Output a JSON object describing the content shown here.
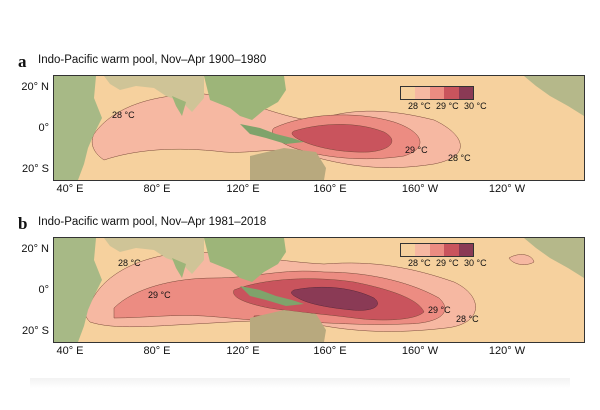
{
  "panels": [
    {
      "letter": "a",
      "title": "Indo-Pacific warm pool, Nov–Apr 1900–1980",
      "contour_labels": [
        "28 °C",
        "29 °C",
        "28 °C"
      ]
    },
    {
      "letter": "b",
      "title": "Indo-Pacific warm pool, Nov–Apr 1981–2018",
      "contour_labels": [
        "28 °C",
        "29 °C",
        "29 °C",
        "28 °C"
      ]
    }
  ],
  "lat_ticks": [
    "20° N",
    "0°",
    "20° S"
  ],
  "lon_ticks": [
    "40° E",
    "80° E",
    "120° E",
    "160° E",
    "160° W",
    "120° W"
  ],
  "legend": {
    "labels": [
      "28 °C",
      "29 °C",
      "30 °C"
    ],
    "colors": [
      "#f6d19e",
      "#f6b8a2",
      "#ec8c82",
      "#c9545d",
      "#8a3a55"
    ]
  },
  "colors": {
    "ocean": "#f6d19e",
    "land_green": "#8fb27a",
    "land_tan": "#d9c9a1",
    "level_28": "#f6b8a2",
    "level_285": "#ec8c82",
    "level_29": "#c9545d",
    "level_30": "#8a3a55"
  }
}
